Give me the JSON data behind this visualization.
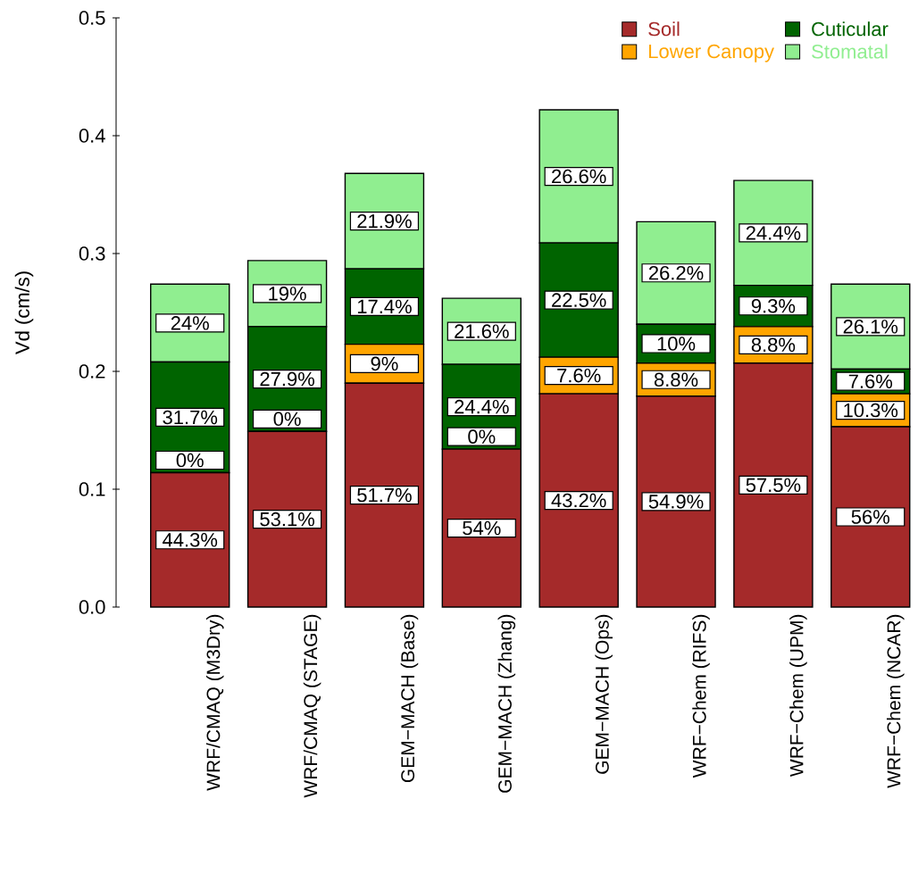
{
  "chart_data": {
    "type": "bar",
    "stacked": true,
    "ylabel": "Vd (cm/s)",
    "categories": [
      "WRF/CMAQ (M3Dry)",
      "WRF/CMAQ (STAGE)",
      "GEM−MACH (Base)",
      "GEM−MACH (Zhang)",
      "GEM−MACH (Ops)",
      "WRF−Chem (RIFS)",
      "WRF−Chem (UPM)",
      "WRF−Chem (NCAR)"
    ],
    "ylim": [
      0,
      0.5
    ],
    "yticks": [
      {
        "value": 0,
        "label": "0.0"
      },
      0.1,
      0.2,
      0.3,
      0.4,
      0.5
    ],
    "legend": "top right",
    "series": [
      {
        "name": "Soil",
        "color": "#a52a2a",
        "values": [
          0.114,
          0.149,
          0.19,
          0.134,
          0.181,
          0.179,
          0.207,
          0.153
        ]
      },
      {
        "name": "Lower Canopy",
        "color": "#ffa500",
        "values": [
          0,
          0,
          0.033,
          0,
          0.031,
          0.028,
          0.031,
          0.028
        ]
      },
      {
        "name": "Cuticular",
        "color": "#006400",
        "values": [
          0.094,
          0.089,
          0.064,
          0.072,
          0.097,
          0.033,
          0.035,
          0.021
        ]
      },
      {
        "name": "Stomatal",
        "color": "#90ee90",
        "values": [
          0.066,
          0.056,
          0.081,
          0.056,
          0.113,
          0.087,
          0.089,
          0.072
        ]
      }
    ],
    "annotations": [
      "44.3%",
      "0%",
      "31.7%",
      "24%",
      "53.1%",
      "0%",
      "27.9%",
      "19%",
      "51.7%",
      "9%",
      "17.4%",
      "21.9%",
      "54%",
      "0%",
      "24.4%",
      "21.6%",
      "43.2%",
      "7.6%",
      "22.5%",
      "26.6%",
      "54.9%",
      "8.8%",
      "10%",
      "26.2%",
      "57.5%",
      "8.8%",
      "9.3%",
      "24.4%",
      "56%",
      "10.3%",
      "7.6%",
      "26.1%"
    ]
  }
}
